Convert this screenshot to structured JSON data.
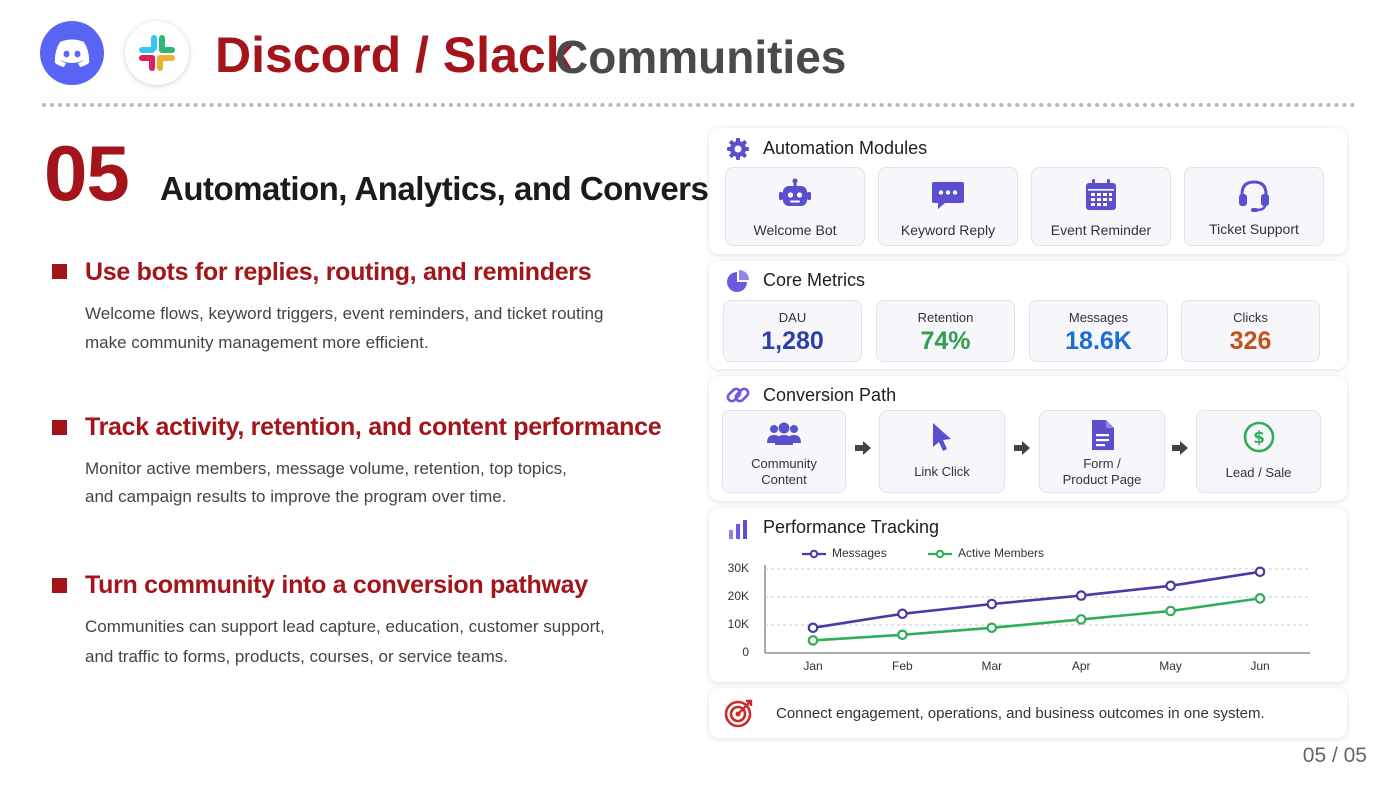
{
  "header": {
    "title_main": "Discord / Slack",
    "title_sub": "Communities",
    "logos": [
      "discord-logo",
      "slack-logo"
    ]
  },
  "section": {
    "number": "05",
    "title": "Automation, Analytics, and Conversion"
  },
  "bullets": [
    {
      "heading": "Use bots for replies, routing, and reminders",
      "lines": [
        "Welcome flows, keyword triggers, event reminders, and ticket routing",
        "make community management more efficient."
      ]
    },
    {
      "heading": "Track activity, retention, and content performance",
      "lines": [
        "Monitor active members, message volume, retention, top topics,",
        "and campaign results to improve the program over time."
      ]
    },
    {
      "heading": "Turn community into a conversion pathway",
      "lines": [
        "Communities can support lead capture,  education, customer support,",
        "and traffic to forms, products, courses, or service teams."
      ]
    }
  ],
  "automation": {
    "title": "Automation Modules",
    "icon": "gear-icon",
    "modules": [
      {
        "label": "Welcome Bot",
        "icon": "robot-icon"
      },
      {
        "label": "Keyword Reply",
        "icon": "chat-bubble-icon"
      },
      {
        "label": "Event Reminder",
        "icon": "calendar-icon"
      },
      {
        "label": "Ticket Support",
        "icon": "headset-icon"
      }
    ]
  },
  "metrics": {
    "title": "Core Metrics",
    "icon": "pie-chart-icon",
    "items": [
      {
        "label": "DAU",
        "value": "1,280",
        "color": "#2d3fa8"
      },
      {
        "label": "Retention",
        "value": "74%",
        "color": "#2e9e4f"
      },
      {
        "label": "Messages",
        "value": "18.6K",
        "color": "#1a6fd0"
      },
      {
        "label": "Clicks",
        "value": "326",
        "color": "#c4501a"
      }
    ]
  },
  "conversion": {
    "title": "Conversion Path",
    "icon": "link-icon",
    "steps": [
      {
        "label_lines": [
          "Community",
          "Content"
        ],
        "icon": "users-icon"
      },
      {
        "label_lines": [
          "Link Click"
        ],
        "icon": "cursor-icon"
      },
      {
        "label_lines": [
          "Form /",
          "Product Page"
        ],
        "icon": "document-icon"
      },
      {
        "label_lines": [
          "Lead / Sale"
        ],
        "icon": "dollar-icon"
      }
    ]
  },
  "performance": {
    "title": "Performance Tracking",
    "icon": "bar-chart-icon"
  },
  "chart_data": {
    "type": "line",
    "title": "Performance Tracking",
    "x": [
      "Jan",
      "Feb",
      "Mar",
      "Apr",
      "May",
      "Jun"
    ],
    "series": [
      {
        "name": "Messages",
        "values": [
          9000,
          14000,
          17500,
          20500,
          24000,
          29000
        ],
        "color": "#4a3aa8"
      },
      {
        "name": "Active Members",
        "values": [
          4500,
          6500,
          9000,
          12000,
          15000,
          19500
        ],
        "color": "#2fae5a"
      }
    ],
    "yticks": [
      "0",
      "10K",
      "20K",
      "30K"
    ],
    "ylim": [
      0,
      30000
    ],
    "grid": true,
    "legend": "top-left"
  },
  "footer": {
    "text": "Connect engagement, operations, and business outcomes in one system.",
    "icon": "target-icon"
  },
  "page": {
    "number": "05 / 05"
  }
}
